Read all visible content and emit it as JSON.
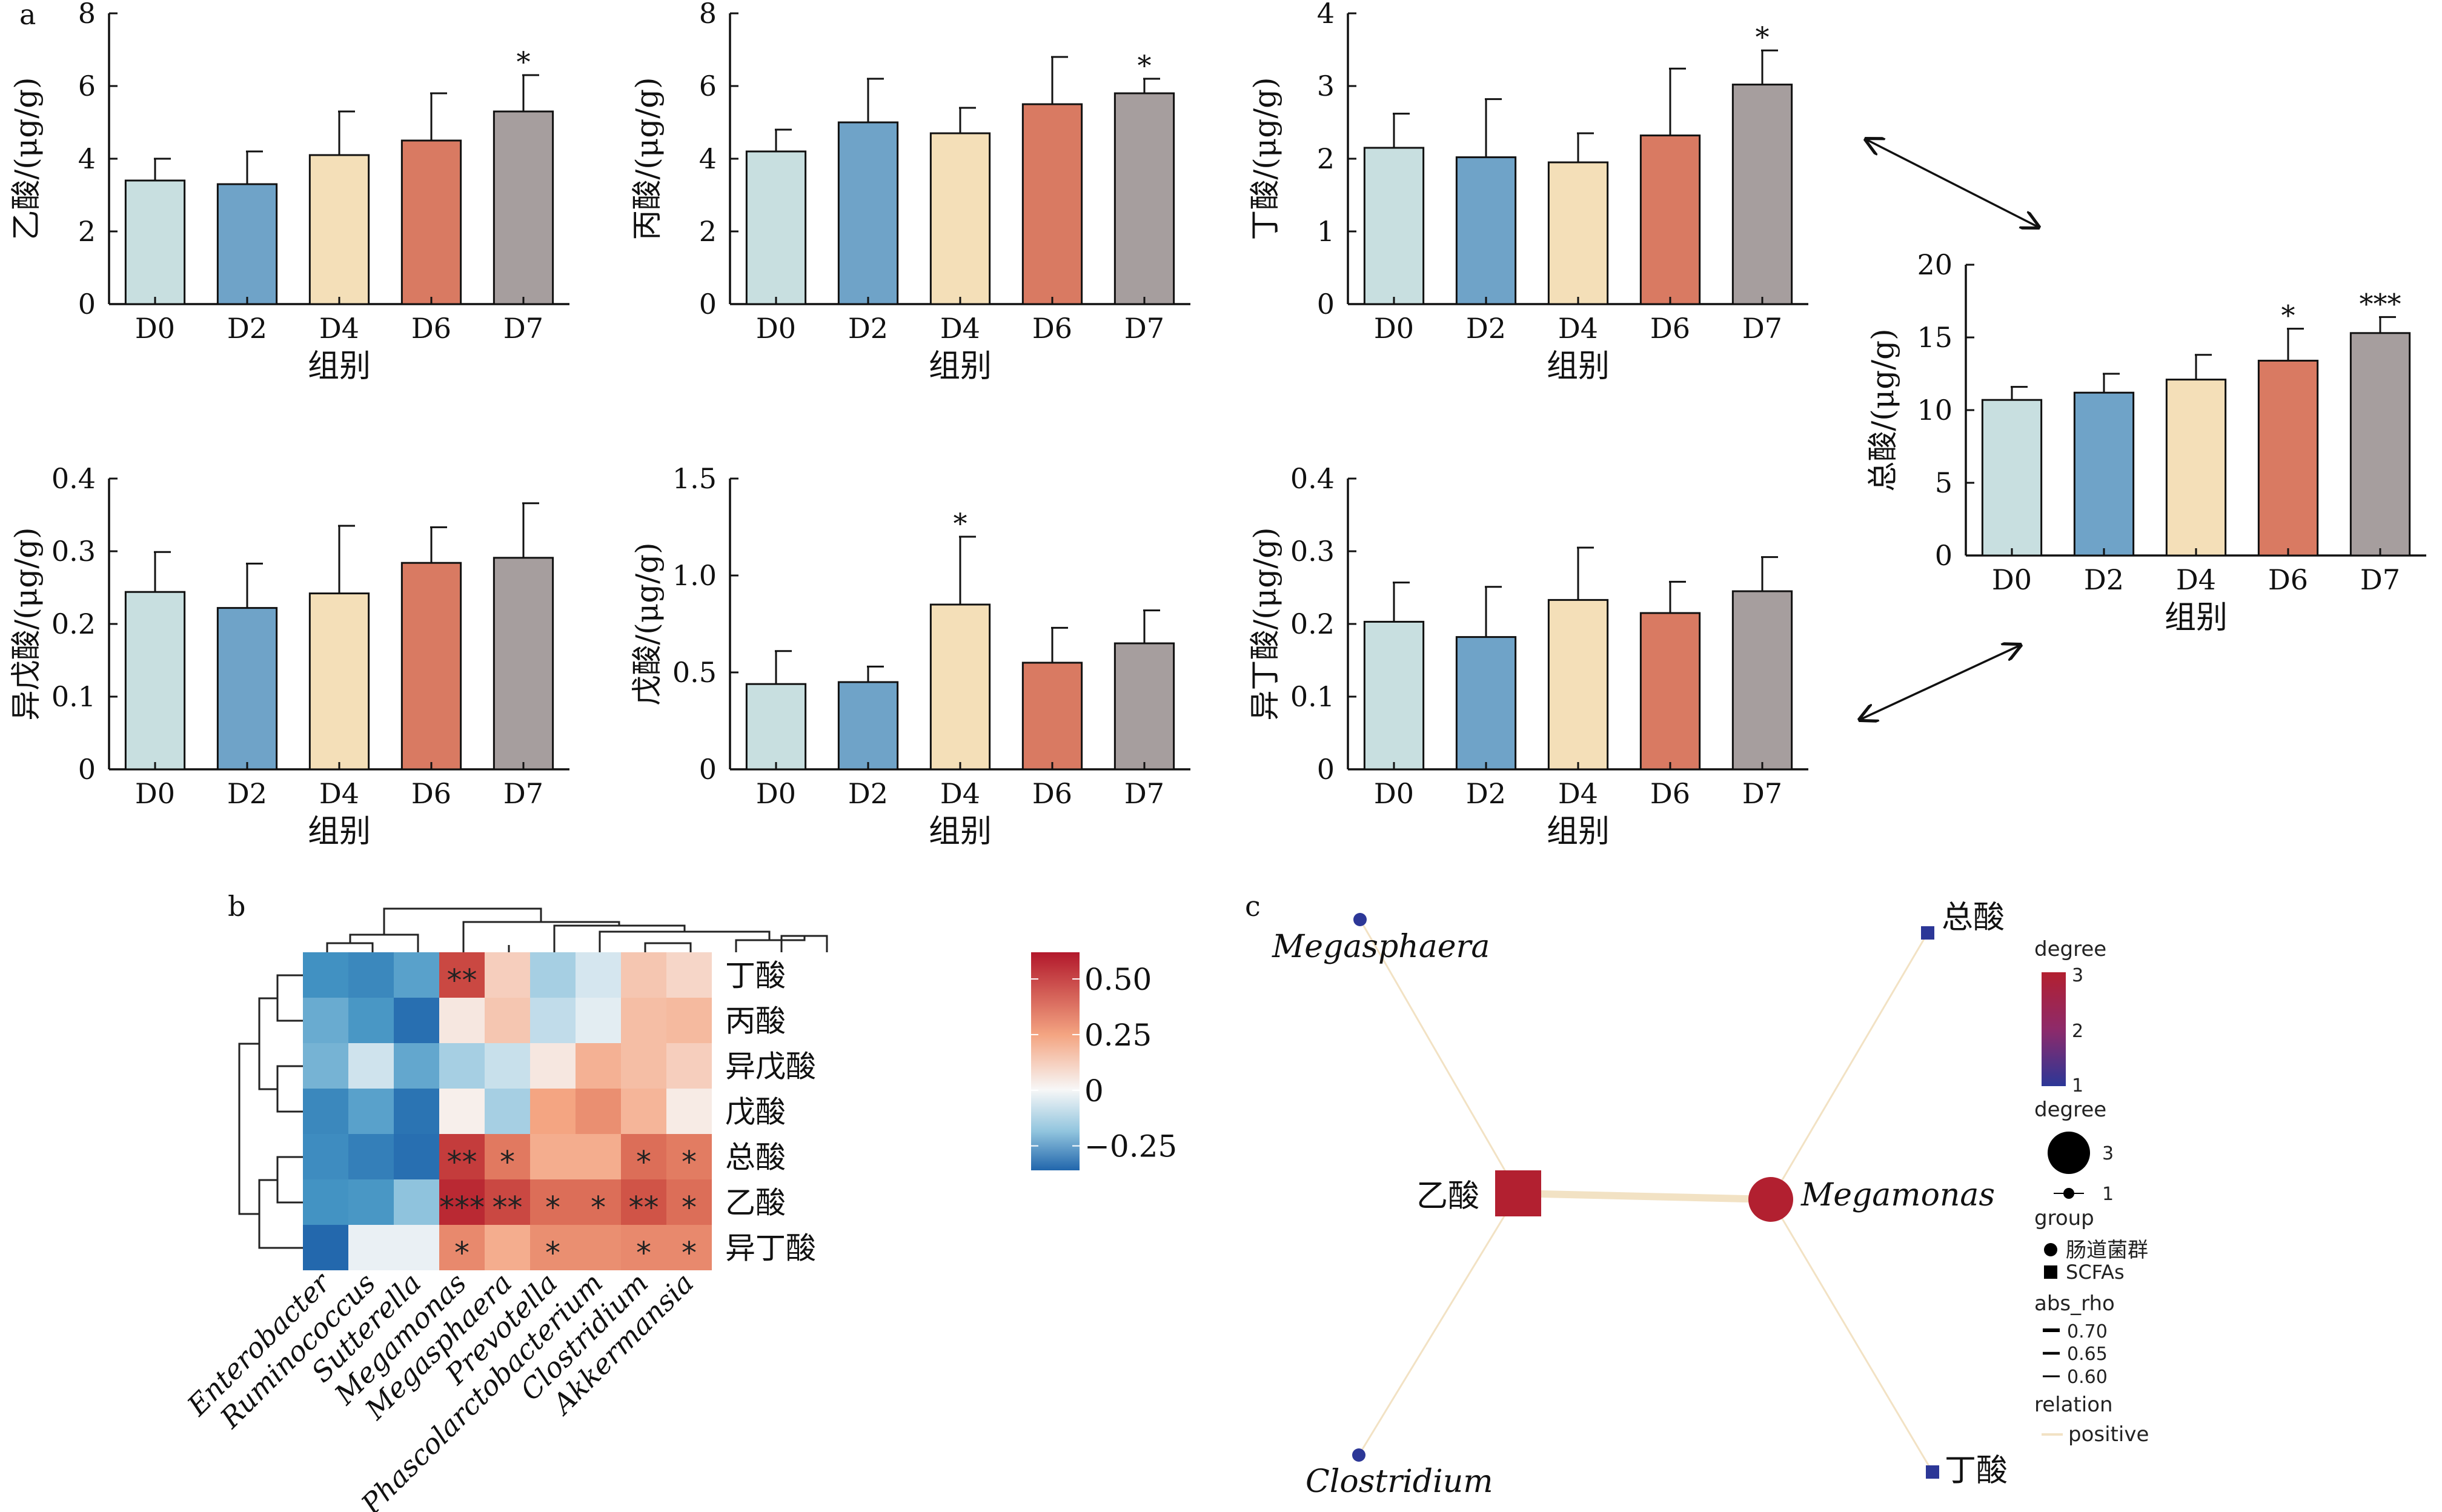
{
  "panels": {
    "a": "a",
    "b": "b",
    "c": "c"
  },
  "chart_data": [
    {
      "type": "bar",
      "categories": [
        "D0",
        "D2",
        "D4",
        "D6",
        "D7"
      ],
      "values": [
        3.4,
        3.3,
        4.1,
        4.5,
        5.3
      ],
      "errors": [
        0.6,
        0.9,
        1.2,
        1.3,
        1.0
      ],
      "sig": [
        "",
        "",
        "",
        "",
        "*"
      ],
      "xlabel": "组别",
      "ylabel": "乙酸/(μg/g)",
      "ylim": [
        0,
        8
      ],
      "yticks": [
        "0",
        "2",
        "4",
        "6",
        "8"
      ],
      "colors": [
        "#c8dfe0",
        "#6fa3c8",
        "#f4dfb8",
        "#d97a62",
        "#a69e9e"
      ]
    },
    {
      "type": "bar",
      "categories": [
        "D0",
        "D2",
        "D4",
        "D6",
        "D7"
      ],
      "values": [
        4.2,
        5.0,
        4.7,
        5.5,
        5.8
      ],
      "errors": [
        0.6,
        1.2,
        0.7,
        1.3,
        0.4
      ],
      "sig": [
        "",
        "",
        "",
        "",
        "*"
      ],
      "xlabel": "组别",
      "ylabel": "丙酸/(μg/g)",
      "ylim": [
        0,
        8
      ],
      "yticks": [
        "0",
        "2",
        "4",
        "6",
        "8"
      ],
      "colors": [
        "#c8dfe0",
        "#6fa3c8",
        "#f4dfb8",
        "#d97a62",
        "#a69e9e"
      ]
    },
    {
      "type": "bar",
      "categories": [
        "D0",
        "D2",
        "D4",
        "D6",
        "D7"
      ],
      "values": [
        2.15,
        2.02,
        1.95,
        2.32,
        3.02
      ],
      "errors": [
        0.47,
        0.8,
        0.4,
        0.92,
        0.47
      ],
      "sig": [
        "",
        "",
        "",
        "",
        "*"
      ],
      "xlabel": "组别",
      "ylabel": "丁酸/(μg/g)",
      "ylim": [
        0,
        4
      ],
      "yticks": [
        "0",
        "1",
        "2",
        "3",
        "4"
      ],
      "colors": [
        "#c8dfe0",
        "#6fa3c8",
        "#f4dfb8",
        "#d97a62",
        "#a69e9e"
      ]
    },
    {
      "type": "bar",
      "categories": [
        "D0",
        "D2",
        "D4",
        "D6",
        "D7"
      ],
      "values": [
        10.7,
        11.2,
        12.1,
        13.4,
        15.3
      ],
      "errors": [
        0.9,
        1.3,
        1.7,
        2.2,
        1.1
      ],
      "sig": [
        "",
        "",
        "",
        "*",
        "***"
      ],
      "xlabel": "组别",
      "ylabel": "总酸/(μg/g)",
      "ylim": [
        0,
        20
      ],
      "yticks": [
        "0",
        "5",
        "10",
        "15",
        "20"
      ],
      "colors": [
        "#c8dfe0",
        "#6fa3c8",
        "#f4dfb8",
        "#d97a62",
        "#a69e9e"
      ]
    },
    {
      "type": "bar",
      "categories": [
        "D0",
        "D2",
        "D4",
        "D6",
        "D7"
      ],
      "values": [
        0.244,
        0.222,
        0.242,
        0.284,
        0.291
      ],
      "errors": [
        0.055,
        0.061,
        0.093,
        0.049,
        0.075
      ],
      "sig": [
        "",
        "",
        "",
        "",
        ""
      ],
      "xlabel": "组别",
      "ylabel": "异戊酸/(μg/g)",
      "ylim": [
        0,
        0.4
      ],
      "yticks": [
        "0",
        "0.1",
        "0.2",
        "0.3",
        "0.4"
      ],
      "colors": [
        "#c8dfe0",
        "#6fa3c8",
        "#f4dfb8",
        "#d97a62",
        "#a69e9e"
      ]
    },
    {
      "type": "bar",
      "categories": [
        "D0",
        "D2",
        "D4",
        "D6",
        "D7"
      ],
      "values": [
        0.44,
        0.45,
        0.85,
        0.55,
        0.65
      ],
      "errors": [
        0.17,
        0.08,
        0.35,
        0.18,
        0.17
      ],
      "sig": [
        "",
        "",
        "*",
        "",
        ""
      ],
      "xlabel": "组别",
      "ylabel": "戊酸/(μg/g)",
      "ylim": [
        0,
        1.5
      ],
      "yticks": [
        "0",
        "0.5",
        "1.0",
        "1.5"
      ],
      "colors": [
        "#c8dfe0",
        "#6fa3c8",
        "#f4dfb8",
        "#d97a62",
        "#a69e9e"
      ]
    },
    {
      "type": "bar",
      "categories": [
        "D0",
        "D2",
        "D4",
        "D6",
        "D7"
      ],
      "values": [
        0.203,
        0.182,
        0.233,
        0.215,
        0.245
      ],
      "errors": [
        0.054,
        0.069,
        0.072,
        0.043,
        0.047
      ],
      "sig": [
        "",
        "",
        "",
        "",
        ""
      ],
      "xlabel": "组别",
      "ylabel": "异丁酸/(μg/g)",
      "ylim": [
        0,
        0.4
      ],
      "yticks": [
        "0",
        "0.1",
        "0.2",
        "0.3",
        "0.4"
      ],
      "colors": [
        "#c8dfe0",
        "#6fa3c8",
        "#f4dfb8",
        "#d97a62",
        "#a69e9e"
      ]
    },
    {
      "type": "heatmap",
      "columns": [
        "Enterobacter",
        "Ruminococcus",
        "Sutterella",
        "Megamonas",
        "Megasphaera",
        "Prevotella",
        "Phascolarctobacterium",
        "Clostridium",
        "Akkermansia"
      ],
      "rows": [
        "丁酸",
        "丙酸",
        "异戊酸",
        "戊酸",
        "总酸",
        "乙酸",
        "异丁酸"
      ],
      "values": [
        [
          -0.42,
          -0.5,
          -0.33,
          0.55,
          0.1,
          -0.12,
          -0.05,
          0.12,
          0.08
        ],
        [
          -0.28,
          -0.38,
          -0.72,
          0.04,
          0.12,
          -0.08,
          -0.03,
          0.14,
          0.15
        ],
        [
          -0.24,
          -0.06,
          -0.3,
          -0.12,
          -0.07,
          0.04,
          0.17,
          0.14,
          0.1
        ],
        [
          -0.5,
          -0.33,
          -0.68,
          0.02,
          -0.12,
          0.2,
          0.28,
          0.16,
          0.03
        ],
        [
          -0.46,
          -0.58,
          -0.72,
          0.6,
          0.36,
          0.18,
          0.18,
          0.4,
          0.35
        ],
        [
          -0.4,
          -0.38,
          -0.16,
          0.68,
          0.55,
          0.4,
          0.4,
          0.5,
          0.4
        ],
        [
          -0.78,
          -0.02,
          -0.02,
          0.3,
          0.18,
          0.28,
          0.28,
          0.3,
          0.3
        ]
      ],
      "stars": [
        [
          "",
          "",
          "",
          "**",
          "",
          "",
          "",
          "",
          ""
        ],
        [
          "",
          "",
          "",
          "",
          "",
          "",
          "",
          "",
          ""
        ],
        [
          "",
          "",
          "",
          "",
          "",
          "",
          "",
          "",
          ""
        ],
        [
          "",
          "",
          "",
          "",
          "",
          "",
          "",
          "",
          ""
        ],
        [
          "",
          "",
          "",
          "**",
          "*",
          "",
          "",
          "*",
          "*"
        ],
        [
          "",
          "",
          "",
          "***",
          "**",
          "*",
          "*",
          "**",
          "*"
        ],
        [
          "",
          "",
          "",
          "*",
          "",
          "*",
          "",
          "*",
          "*"
        ]
      ],
      "colorbar": {
        "ticks": [
          "0.50",
          "0.25",
          "0",
          "−0.25"
        ],
        "range": [
          -0.36,
          0.62
        ]
      }
    },
    {
      "type": "network",
      "nodes": [
        {
          "id": "Megasphaera",
          "label": "Megasphaera",
          "group": "肠道菌群",
          "degree": 1
        },
        {
          "id": "Clostridium",
          "label": "Clostridium",
          "group": "肠道菌群",
          "degree": 1
        },
        {
          "id": "Megamonas",
          "label": "Megamonas",
          "group": "肠道菌群",
          "degree": 3
        },
        {
          "id": "乙酸",
          "label": "乙酸",
          "group": "SCFAs",
          "degree": 3
        },
        {
          "id": "总酸",
          "label": "总酸",
          "group": "SCFAs",
          "degree": 1
        },
        {
          "id": "丁酸",
          "label": "丁酸",
          "group": "SCFAs",
          "degree": 1
        }
      ],
      "edges": [
        {
          "from": "乙酸",
          "to": "Megamonas",
          "abs_rho": 0.7,
          "relation": "positive"
        },
        {
          "from": "乙酸",
          "to": "Megasphaera",
          "abs_rho": 0.6,
          "relation": "positive"
        },
        {
          "from": "乙酸",
          "to": "Clostridium",
          "abs_rho": 0.6,
          "relation": "positive"
        },
        {
          "from": "Megamonas",
          "to": "总酸",
          "abs_rho": 0.6,
          "relation": "positive"
        },
        {
          "from": "Megamonas",
          "to": "丁酸",
          "abs_rho": 0.6,
          "relation": "positive"
        }
      ]
    }
  ],
  "legend": {
    "degree_title": "degree",
    "degree_color_ticks": [
      "3",
      "2",
      "1"
    ],
    "degree_size_title": "degree",
    "degree_size_ticks": [
      "3",
      "1"
    ],
    "group_title": "group",
    "group_items": [
      "肠道菌群",
      "SCFAs"
    ],
    "rho_title": "abs_rho",
    "rho_items": [
      "0.70",
      "0.65",
      "0.60"
    ],
    "relation_title": "relation",
    "relation_items": [
      "positive"
    ]
  }
}
